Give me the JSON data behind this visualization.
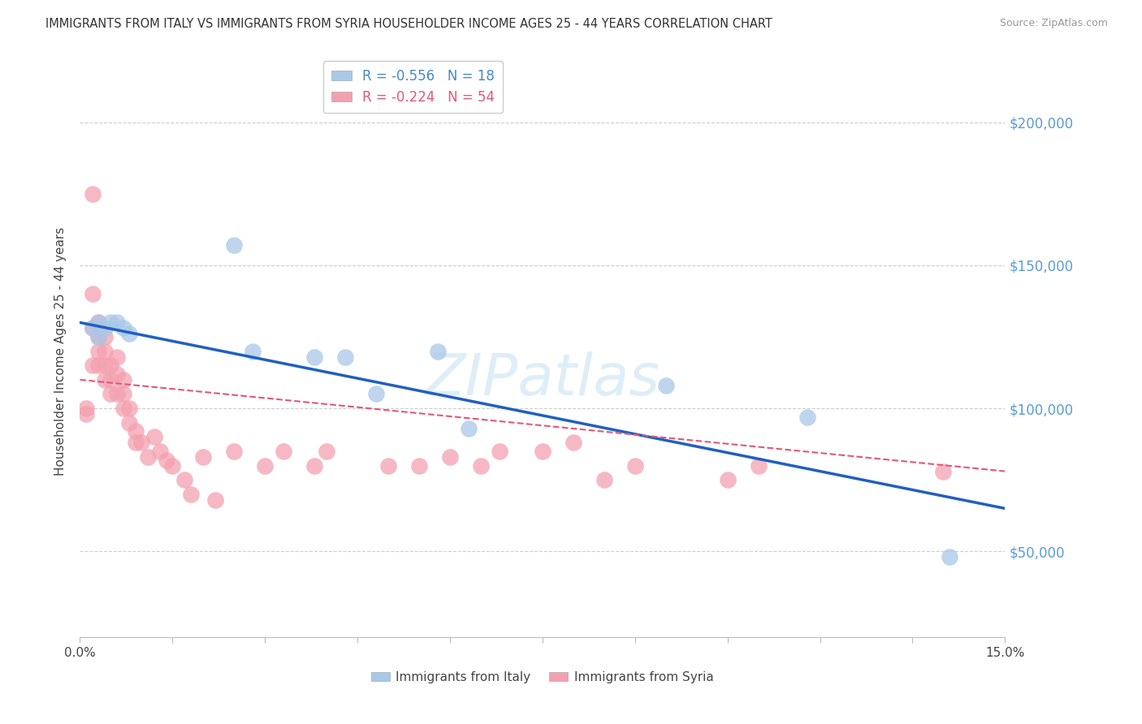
{
  "title": "IMMIGRANTS FROM ITALY VS IMMIGRANTS FROM SYRIA HOUSEHOLDER INCOME AGES 25 - 44 YEARS CORRELATION CHART",
  "source": "Source: ZipAtlas.com",
  "ylabel": "Householder Income Ages 25 - 44 years",
  "xlim": [
    0.0,
    0.15
  ],
  "ylim": [
    20000,
    220000
  ],
  "yticks": [
    50000,
    100000,
    150000,
    200000
  ],
  "ytick_labels": [
    "$50,000",
    "$100,000",
    "$150,000",
    "$200,000"
  ],
  "xticks": [
    0.0,
    0.015,
    0.03,
    0.045,
    0.06,
    0.075,
    0.09,
    0.105,
    0.12,
    0.135,
    0.15
  ],
  "xtick_labels": [
    "0.0%",
    "",
    "",
    "",
    "",
    "",
    "",
    "",
    "",
    "",
    "15.0%"
  ],
  "italy_R": -0.556,
  "italy_N": 18,
  "syria_R": -0.224,
  "syria_N": 54,
  "italy_color": "#a8c8e8",
  "syria_color": "#f4a0b0",
  "italy_line_color": "#2060c0",
  "syria_line_color": "#e05878",
  "grid_color": "#cccccc",
  "bg_color": "#ffffff",
  "italy_label_color": "#4488cc",
  "syria_label_color": "#e05878",
  "italy_x": [
    0.002,
    0.003,
    0.003,
    0.004,
    0.005,
    0.006,
    0.007,
    0.008,
    0.025,
    0.028,
    0.038,
    0.043,
    0.048,
    0.058,
    0.063,
    0.095,
    0.118,
    0.141
  ],
  "italy_y": [
    128000,
    125000,
    130000,
    128000,
    130000,
    130000,
    128000,
    126000,
    157000,
    120000,
    118000,
    118000,
    105000,
    120000,
    93000,
    108000,
    97000,
    48000
  ],
  "syria_x": [
    0.001,
    0.001,
    0.002,
    0.002,
    0.002,
    0.002,
    0.003,
    0.003,
    0.003,
    0.003,
    0.004,
    0.004,
    0.004,
    0.004,
    0.005,
    0.005,
    0.005,
    0.006,
    0.006,
    0.006,
    0.007,
    0.007,
    0.007,
    0.008,
    0.008,
    0.009,
    0.009,
    0.01,
    0.011,
    0.012,
    0.013,
    0.014,
    0.015,
    0.017,
    0.018,
    0.02,
    0.022,
    0.025,
    0.03,
    0.033,
    0.038,
    0.04,
    0.05,
    0.055,
    0.06,
    0.065,
    0.068,
    0.075,
    0.08,
    0.085,
    0.09,
    0.105,
    0.11,
    0.14
  ],
  "syria_y": [
    100000,
    98000,
    175000,
    140000,
    128000,
    115000,
    130000,
    125000,
    120000,
    115000,
    125000,
    120000,
    115000,
    110000,
    115000,
    110000,
    105000,
    118000,
    112000,
    105000,
    110000,
    105000,
    100000,
    100000,
    95000,
    92000,
    88000,
    88000,
    83000,
    90000,
    85000,
    82000,
    80000,
    75000,
    70000,
    83000,
    68000,
    85000,
    80000,
    85000,
    80000,
    85000,
    80000,
    80000,
    83000,
    80000,
    85000,
    85000,
    88000,
    75000,
    80000,
    75000,
    80000,
    78000
  ],
  "italy_line_x": [
    0.0,
    0.15
  ],
  "italy_line_y": [
    130000,
    65000
  ],
  "syria_line_x": [
    0.0,
    0.15
  ],
  "syria_line_y": [
    110000,
    78000
  ],
  "legend_italy_text": "R = -0.556   N = 18",
  "legend_syria_text": "R = -0.224   N = 54",
  "bottom_italy_label": "Immigrants from Italy",
  "bottom_syria_label": "Immigrants from Syria"
}
